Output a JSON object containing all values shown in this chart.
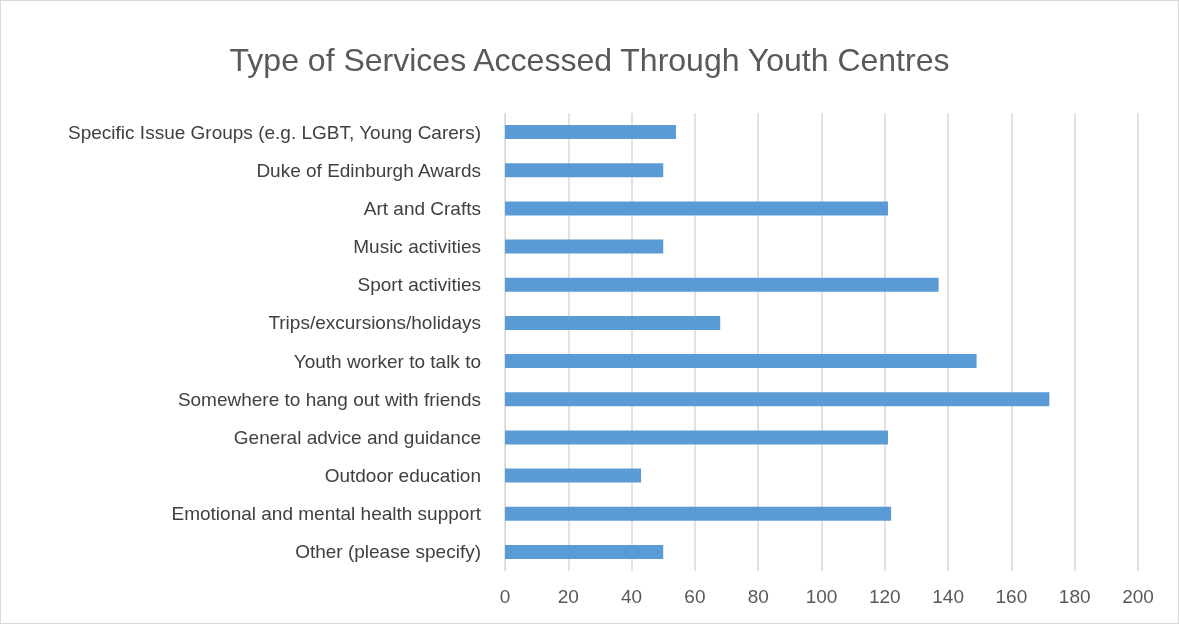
{
  "chart_data": {
    "type": "bar",
    "orientation": "horizontal",
    "title": "Type of Services Accessed Through Youth Centres",
    "categories": [
      "Specific Issue Groups (e.g. LGBT, Young Carers)",
      "Duke of Edinburgh Awards",
      "Art and Crafts",
      "Music activities",
      "Sport activities",
      "Trips/excursions/holidays",
      "Youth worker to talk to",
      "Somewhere to hang out with friends",
      "General advice and guidance",
      "Outdoor education",
      "Emotional and mental health support",
      "Other (please specify)"
    ],
    "values": [
      54,
      50,
      121,
      50,
      137,
      68,
      149,
      172,
      121,
      43,
      122,
      50
    ],
    "color": "#5b9bd5",
    "xlim": [
      0,
      200
    ],
    "xticks": [
      0,
      20,
      40,
      60,
      80,
      100,
      120,
      140,
      160,
      180,
      200
    ],
    "grid": "x"
  }
}
